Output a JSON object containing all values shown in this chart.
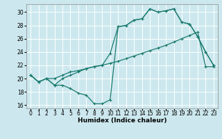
{
  "xlabel": "Humidex (Indice chaleur)",
  "bg_color": "#cce8ee",
  "line_color": "#1a7a6e",
  "grid_color": "#ffffff",
  "xlim": [
    -0.5,
    23.5
  ],
  "ylim": [
    15.5,
    31.2
  ],
  "xticks": [
    0,
    1,
    2,
    3,
    4,
    5,
    6,
    7,
    8,
    9,
    10,
    11,
    12,
    13,
    14,
    15,
    16,
    17,
    18,
    19,
    20,
    21,
    22,
    23
  ],
  "yticks": [
    16,
    18,
    20,
    22,
    24,
    26,
    28,
    30
  ],
  "line1_x": [
    0,
    1,
    2,
    3,
    4,
    5,
    6,
    7,
    8,
    9,
    10,
    11,
    12,
    13,
    14,
    15,
    16,
    17,
    18,
    19,
    20,
    21,
    22,
    23
  ],
  "line1_y": [
    20.5,
    19.5,
    20.0,
    20.0,
    20.5,
    21.0,
    21.2,
    21.5,
    21.8,
    22.0,
    22.3,
    22.6,
    23.0,
    23.4,
    23.8,
    24.2,
    24.6,
    25.0,
    25.5,
    26.0,
    26.5,
    27.0,
    21.8,
    21.8
  ],
  "line2_x": [
    0,
    1,
    2,
    3,
    4,
    5,
    6,
    7,
    8,
    9,
    10,
    11,
    12,
    13,
    14,
    15,
    16,
    17,
    18,
    19,
    20,
    21,
    22,
    23
  ],
  "line2_y": [
    20.5,
    19.5,
    20.0,
    19.0,
    19.0,
    18.5,
    17.8,
    17.5,
    16.2,
    16.2,
    16.8,
    27.8,
    28.0,
    28.8,
    29.0,
    30.5,
    30.0,
    30.2,
    30.5,
    28.5,
    28.2,
    26.3,
    24.0,
    22.0
  ],
  "line3_x": [
    0,
    1,
    2,
    3,
    4,
    5,
    6,
    7,
    8,
    9,
    10,
    11,
    12,
    13,
    14,
    15,
    16,
    17,
    18,
    19,
    20,
    21,
    22,
    23
  ],
  "line3_y": [
    20.5,
    19.5,
    20.0,
    19.0,
    20.0,
    20.5,
    21.0,
    21.5,
    21.8,
    22.0,
    23.8,
    27.8,
    28.0,
    28.8,
    29.0,
    30.5,
    30.0,
    30.2,
    30.5,
    28.5,
    28.2,
    26.3,
    24.0,
    22.0
  ]
}
